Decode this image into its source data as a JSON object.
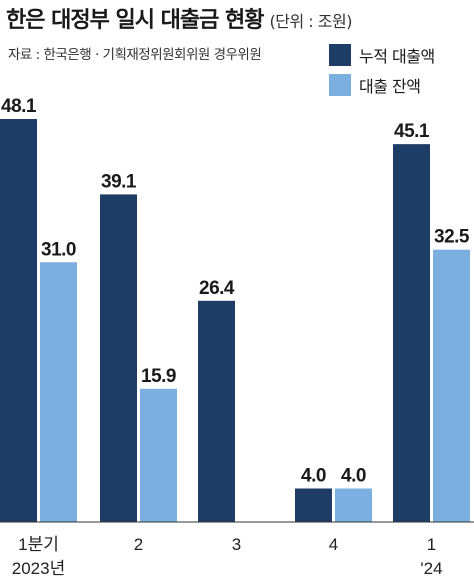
{
  "header": {
    "title": "한은 대정부 일시 대출금 현황",
    "unit": "(단위 : 조원)",
    "source": "자료 : 한국은행 · 기획재정위원회위원 경우위원"
  },
  "colors": {
    "cumulative": "#1e3d66",
    "balance": "#7aafe0"
  },
  "chart_data": {
    "type": "bar",
    "categories": [
      "1분기",
      "2",
      "3",
      "4",
      "1"
    ],
    "period_labels": [
      "2023년",
      "",
      "",
      "",
      "'24"
    ],
    "series": [
      {
        "name": "누적 대출액",
        "values": [
          48.1,
          39.1,
          26.4,
          4.0,
          45.1
        ]
      },
      {
        "name": "대출 잔액",
        "values": [
          31.0,
          15.9,
          null,
          4.0,
          32.5
        ]
      }
    ],
    "ylim": [
      0,
      48.1
    ],
    "grid": false,
    "legend": "top-right"
  }
}
